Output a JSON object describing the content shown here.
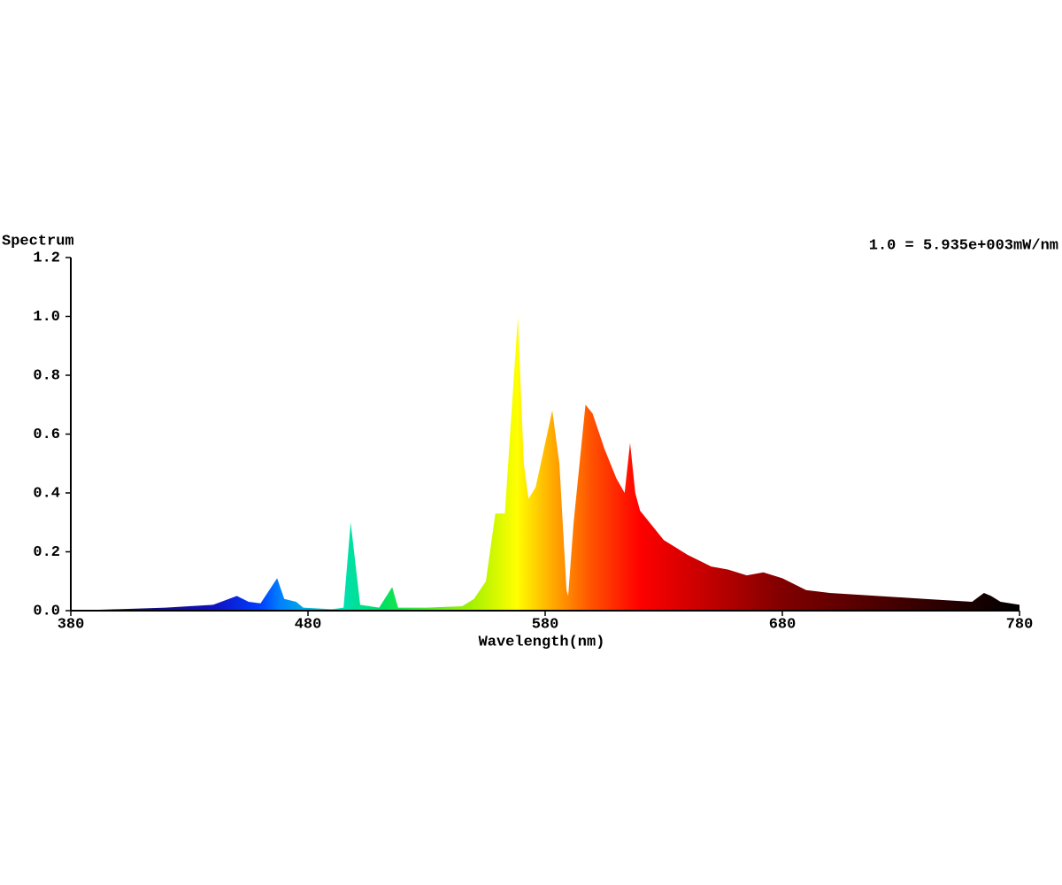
{
  "chart_data": {
    "type": "area",
    "y_label": "Spectrum",
    "annotation": "1.0 = 5.935e+003mW/nm",
    "x_label": "Wavelength(nm)",
    "x": [
      380,
      400,
      420,
      440,
      450,
      455,
      460,
      467,
      470,
      475,
      478,
      490,
      495,
      498,
      502,
      510,
      515.5,
      518,
      530,
      545,
      550,
      555,
      559,
      563,
      568.5,
      571,
      573,
      576,
      583,
      586,
      589,
      589.7,
      592,
      597,
      600,
      605,
      610,
      613.5,
      615.8,
      618,
      620,
      630,
      640,
      650,
      657,
      665,
      672,
      680,
      690,
      700,
      720,
      740,
      760,
      765,
      768,
      772,
      780
    ],
    "values": [
      0.0,
      0.005,
      0.01,
      0.02,
      0.05,
      0.03,
      0.025,
      0.11,
      0.04,
      0.03,
      0.01,
      0.005,
      0.01,
      0.3,
      0.02,
      0.01,
      0.08,
      0.01,
      0.01,
      0.015,
      0.04,
      0.1,
      0.33,
      0.33,
      1.0,
      0.5,
      0.38,
      0.42,
      0.68,
      0.5,
      0.07,
      0.05,
      0.3,
      0.7,
      0.67,
      0.55,
      0.45,
      0.4,
      0.57,
      0.4,
      0.34,
      0.24,
      0.19,
      0.15,
      0.14,
      0.12,
      0.13,
      0.11,
      0.07,
      0.06,
      0.05,
      0.04,
      0.03,
      0.06,
      0.05,
      0.03,
      0.02
    ],
    "xlim": [
      380,
      780
    ],
    "ylim": [
      0,
      1.2
    ],
    "xticks": [
      380,
      480,
      580,
      680,
      780
    ],
    "yticks": [
      {
        "value": 0,
        "label": "0.0"
      },
      0.2,
      0.4,
      0.6,
      0.8,
      {
        "value": 1,
        "label": "1.0"
      },
      1.2
    ]
  }
}
